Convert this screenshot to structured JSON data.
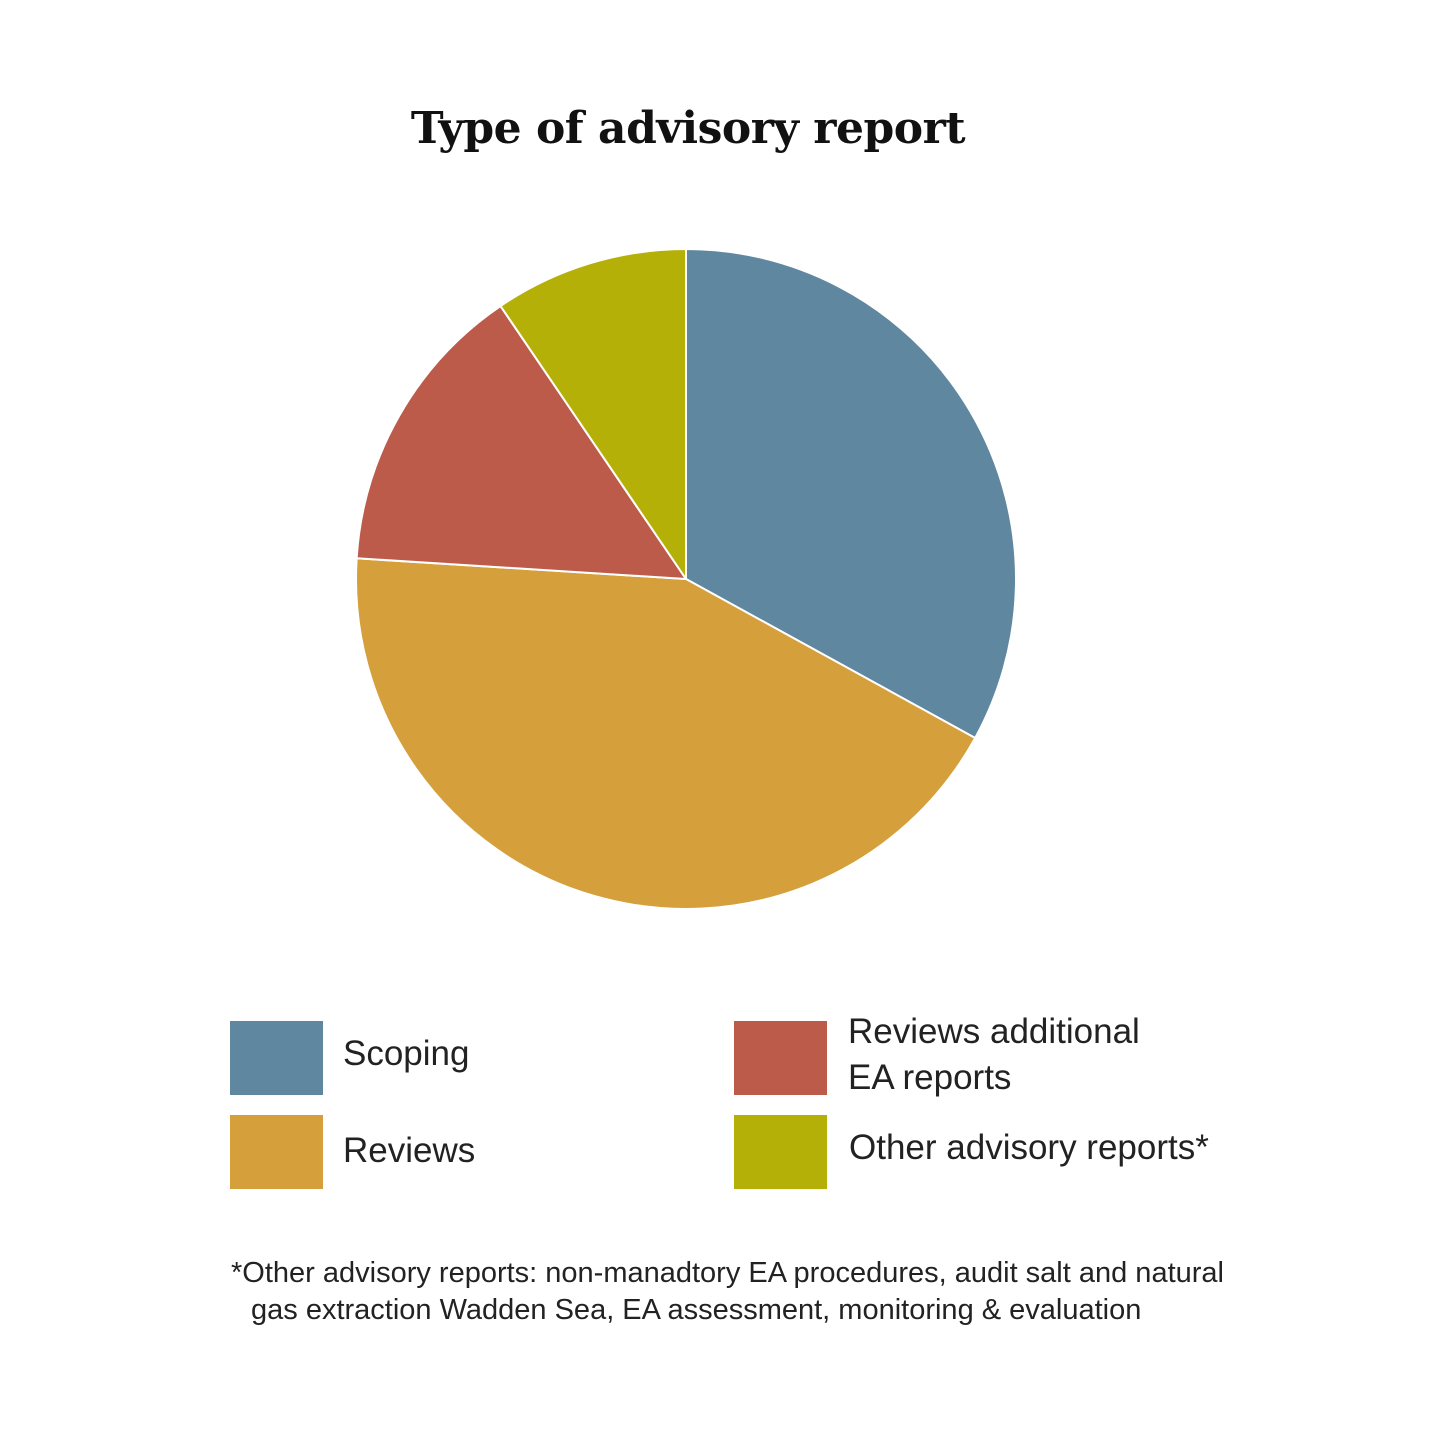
{
  "chart_data": {
    "type": "pie",
    "title": "Type of advisory report",
    "slices": [
      {
        "name": "Scoping",
        "value": 33,
        "color": "#5f879f"
      },
      {
        "name": "Reviews",
        "value": 43,
        "color": "#d59f3b"
      },
      {
        "name": "Reviews additional EA reports",
        "value": 14.5,
        "color": "#bd5b4b"
      },
      {
        "name": "Other advisory reports*",
        "value": 9.5,
        "color": "#b5b008"
      }
    ],
    "start_angle_deg": 0,
    "direction": "clockwise",
    "legend_placement": "bottom",
    "footnote_line1": "*Other advisory reports: non-manadtory EA procedures, audit salt and natural",
    "footnote_line2": "gas extraction Wadden Sea, EA assessment, monitoring & evaluation"
  },
  "legend": {
    "scoping": "Scoping",
    "reviews": "Reviews",
    "reviews_additional_line1": "Reviews additional",
    "reviews_additional_line2": "EA reports",
    "other": "Other advisory reports*"
  }
}
